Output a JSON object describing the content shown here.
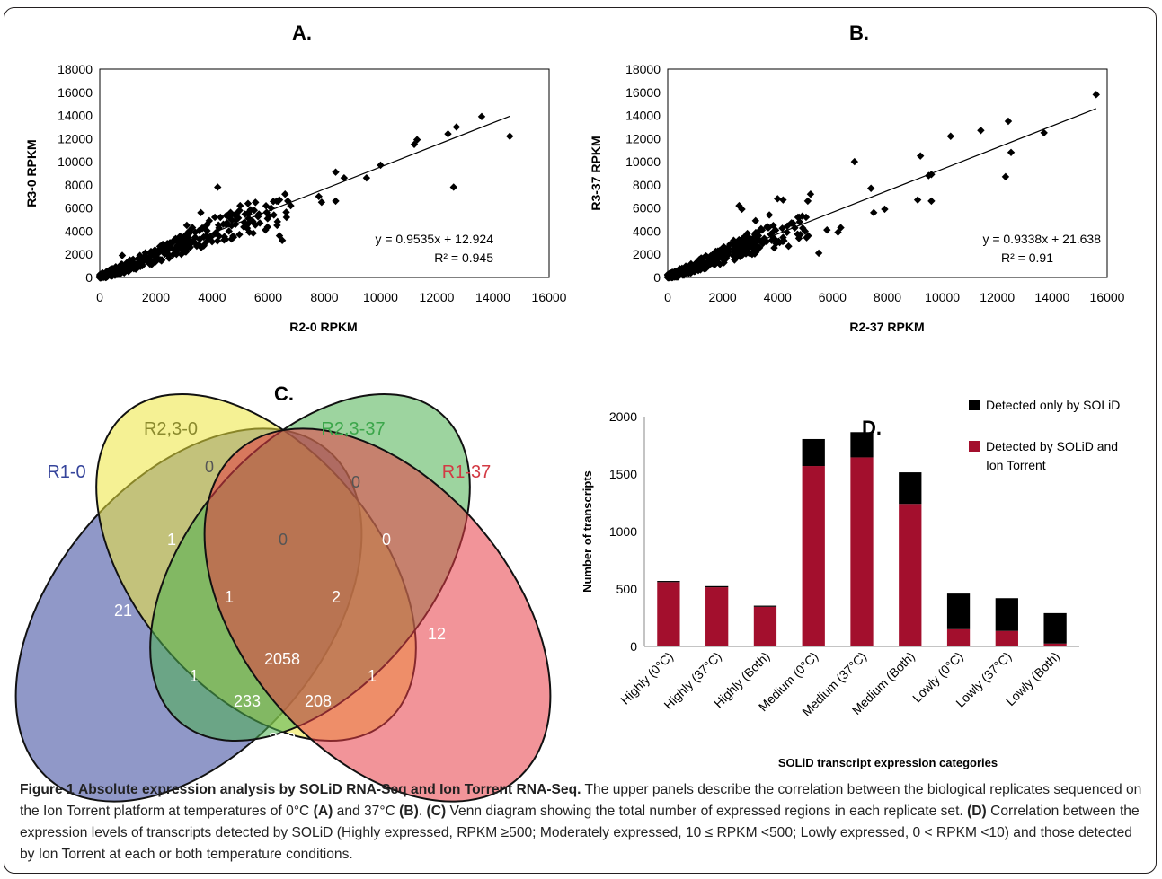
{
  "caption": {
    "figure_label": "Figure 1",
    "title": "Absolute expression analysis by SOLiD RNA-Seq and Ion Torrent RNA-Seq.",
    "text_1": " The upper panels describe the correlation between the biological replicates sequenced on the Ion Torrent platform at temperatures of 0°C ",
    "ref_a": "(A)",
    "text_2": " and 37°C ",
    "ref_b": "(B)",
    "text_3": ". ",
    "ref_c": "(C)",
    "text_4": " Venn diagram showing the total number of expressed regions in each replicate set. ",
    "ref_d": "(D)",
    "text_5": " Correlation between the expression levels of transcripts detected by SOLiD (Highly expressed, RPKM ≥500; Moderately expressed, 10 ≤ RPKM <500; Lowly expressed, 0 < RPKM <10) and those detected by Ion Torrent at each or both temperature conditions."
  },
  "chart_data": [
    {
      "panel": "A.",
      "type": "scatter",
      "xlabel": "R2-0 RPKM",
      "ylabel": "R3-0 RPKM",
      "xlim": [
        0,
        16000
      ],
      "ylim": [
        0,
        18000
      ],
      "xticks": [
        0,
        2000,
        4000,
        6000,
        8000,
        10000,
        12000,
        14000,
        16000
      ],
      "yticks": [
        0,
        2000,
        4000,
        6000,
        8000,
        10000,
        12000,
        14000,
        16000,
        18000
      ],
      "trendline": {
        "slope": 0.9535,
        "intercept": 12.924,
        "x_range": [
          0,
          14600
        ]
      },
      "equation": "y = 0.9535x + 12.924",
      "r2": "R² = 0.945",
      "points": [
        [
          13600,
          13900
        ],
        [
          14600,
          12200
        ],
        [
          12700,
          13000
        ],
        [
          12400,
          12400
        ],
        [
          11300,
          11900
        ],
        [
          11200,
          11500
        ],
        [
          12600,
          7800
        ],
        [
          10000,
          9700
        ],
        [
          9500,
          8600
        ],
        [
          8400,
          9100
        ],
        [
          8700,
          8600
        ],
        [
          8400,
          6600
        ],
        [
          7800,
          7000
        ],
        [
          7900,
          6500
        ],
        [
          6600,
          7200
        ],
        [
          6400,
          6700
        ],
        [
          6300,
          6600
        ],
        [
          6500,
          3200
        ],
        [
          6400,
          3600
        ],
        [
          5900,
          4100
        ],
        [
          5700,
          4700
        ],
        [
          5500,
          5800
        ],
        [
          4200,
          7800
        ],
        [
          4100,
          5200
        ],
        [
          3900,
          4900
        ],
        [
          3600,
          5600
        ],
        [
          3300,
          4300
        ],
        [
          3100,
          4500
        ],
        [
          2800,
          3300
        ],
        [
          2500,
          3000
        ],
        [
          2300,
          2800
        ],
        [
          2100,
          2200
        ],
        [
          1900,
          2000
        ],
        [
          1700,
          1500
        ],
        [
          1500,
          1300
        ],
        [
          1300,
          1100
        ],
        [
          1100,
          900
        ],
        [
          900,
          700
        ],
        [
          800,
          1900
        ],
        [
          700,
          500
        ],
        [
          600,
          400
        ],
        [
          500,
          350
        ],
        [
          400,
          300
        ],
        [
          300,
          200
        ],
        [
          200,
          150
        ],
        [
          100,
          80
        ],
        [
          50,
          40
        ],
        [
          4800,
          5400
        ],
        [
          5200,
          4600
        ],
        [
          5000,
          6200
        ],
        [
          4600,
          4000
        ],
        [
          4400,
          4600
        ],
        [
          3700,
          3500
        ],
        [
          3400,
          3900
        ],
        [
          2700,
          2400
        ],
        [
          6100,
          6000
        ],
        [
          5300,
          5100
        ],
        [
          6800,
          6200
        ],
        [
          6200,
          5400
        ]
      ],
      "dense_clusters": [
        {
          "x_range": [
            0,
            3200
          ],
          "y_range": [
            0,
            3400
          ],
          "count": 260
        },
        {
          "x_range": [
            2800,
            6800
          ],
          "y_range": [
            2600,
            6600
          ],
          "count": 110
        }
      ]
    },
    {
      "panel": "B.",
      "type": "scatter",
      "xlabel": "R2-37 RPKM",
      "ylabel": "R3-37 RPKM",
      "xlim": [
        0,
        16000
      ],
      "ylim": [
        0,
        18000
      ],
      "xticks": [
        0,
        2000,
        4000,
        6000,
        8000,
        10000,
        12000,
        14000,
        16000
      ],
      "yticks": [
        0,
        2000,
        4000,
        6000,
        8000,
        10000,
        12000,
        14000,
        16000,
        18000
      ],
      "trendline": {
        "slope": 0.9338,
        "intercept": 21.638,
        "x_range": [
          0,
          15600
        ]
      },
      "equation": "y = 0.9338x + 21.638",
      "r2": "R² = 0.91",
      "points": [
        [
          15600,
          15800
        ],
        [
          13700,
          12500
        ],
        [
          12400,
          13500
        ],
        [
          12300,
          8700
        ],
        [
          12500,
          10800
        ],
        [
          11400,
          12700
        ],
        [
          10300,
          12200
        ],
        [
          9600,
          8900
        ],
        [
          9500,
          8800
        ],
        [
          9600,
          6600
        ],
        [
          9200,
          10500
        ],
        [
          9100,
          6700
        ],
        [
          7900,
          5900
        ],
        [
          7500,
          5600
        ],
        [
          7400,
          7700
        ],
        [
          6800,
          10000
        ],
        [
          6300,
          4300
        ],
        [
          6200,
          3900
        ],
        [
          5800,
          4100
        ],
        [
          5200,
          7200
        ],
        [
          5100,
          6600
        ],
        [
          5000,
          4000
        ],
        [
          4900,
          5300
        ],
        [
          4200,
          6700
        ],
        [
          4000,
          6800
        ],
        [
          3700,
          5400
        ],
        [
          3400,
          4200
        ],
        [
          3200,
          4900
        ],
        [
          2900,
          3800
        ],
        [
          2700,
          5900
        ],
        [
          2600,
          6200
        ],
        [
          2400,
          3200
        ],
        [
          2200,
          2500
        ],
        [
          2000,
          2100
        ],
        [
          1800,
          1800
        ],
        [
          1600,
          1500
        ],
        [
          1400,
          1200
        ],
        [
          1200,
          1000
        ],
        [
          1000,
          800
        ],
        [
          800,
          600
        ],
        [
          600,
          450
        ],
        [
          400,
          300
        ],
        [
          200,
          150
        ],
        [
          100,
          80
        ],
        [
          4500,
          4700
        ],
        [
          3600,
          3100
        ],
        [
          3100,
          2500
        ],
        [
          5500,
          2100
        ],
        [
          4400,
          2700
        ]
      ],
      "dense_clusters": [
        {
          "x_range": [
            0,
            3000
          ],
          "y_range": [
            0,
            3400
          ],
          "count": 260
        },
        {
          "x_range": [
            2400,
            5200
          ],
          "y_range": [
            1800,
            5200
          ],
          "count": 100
        }
      ]
    },
    {
      "panel": "C.",
      "type": "venn",
      "sets": [
        {
          "name": "R1-0",
          "color": "#35449b"
        },
        {
          "name": "R2,3-0",
          "color": "#ece53c"
        },
        {
          "name": "R2,3-37",
          "color": "#4cb150"
        },
        {
          "name": "R1-37",
          "color": "#e83d45"
        }
      ],
      "set_label_colors": [
        "#35449b",
        "#8b8a2e",
        "#3ba64a",
        "#d33a44"
      ],
      "regions": {
        "R1-0 only": "21",
        "R2,3-0 only": "0",
        "R2,3-37 only": "0",
        "R1-37 only": "12",
        "R1-0 & R2,3-0": "1",
        "R2,3-0 & R2,3-37": "0",
        "R2,3-37 & R1-37": "0",
        "R1-0 & R2,3-0 & R2,3-37": "1",
        "R2,3-0 & R2,3-37 & R1-37": "2",
        "R1-0 & R2,3-37": "1",
        "R2,3-0 & R1-37": "1",
        "all four": "2058",
        "R1-0 & R2,3-37 & R1-37": "233",
        "R1-0 & R2,3-0 & R1-37": "208",
        "R1-0 & R1-37": "290"
      }
    },
    {
      "panel": "D.",
      "type": "bar",
      "stacked": true,
      "xlabel": "SOLiD transcript expression categories",
      "ylabel": "Number of transcripts",
      "ylim": [
        0,
        2000
      ],
      "yticks": [
        0,
        500,
        1000,
        1500,
        2000
      ],
      "categories": [
        "Highly (0°C)",
        "Highly (37°C)",
        "Highly (Both)",
        "Medium (0°C)",
        "Medium (37°C)",
        "Medium (Both)",
        "Lowly (0°C)",
        "Lowly (37°C)",
        "Lowly (Both)"
      ],
      "series": [
        {
          "name": "Detected by SOLiD and Ion Torrent",
          "color": "#a30f2d",
          "values": [
            560,
            515,
            345,
            1570,
            1645,
            1240,
            150,
            135,
            25
          ]
        },
        {
          "name": "Detected only by SOLiD",
          "color": "#000000",
          "values": [
            10,
            10,
            10,
            235,
            220,
            275,
            310,
            285,
            265
          ]
        }
      ],
      "legend_position": "top-right"
    }
  ]
}
